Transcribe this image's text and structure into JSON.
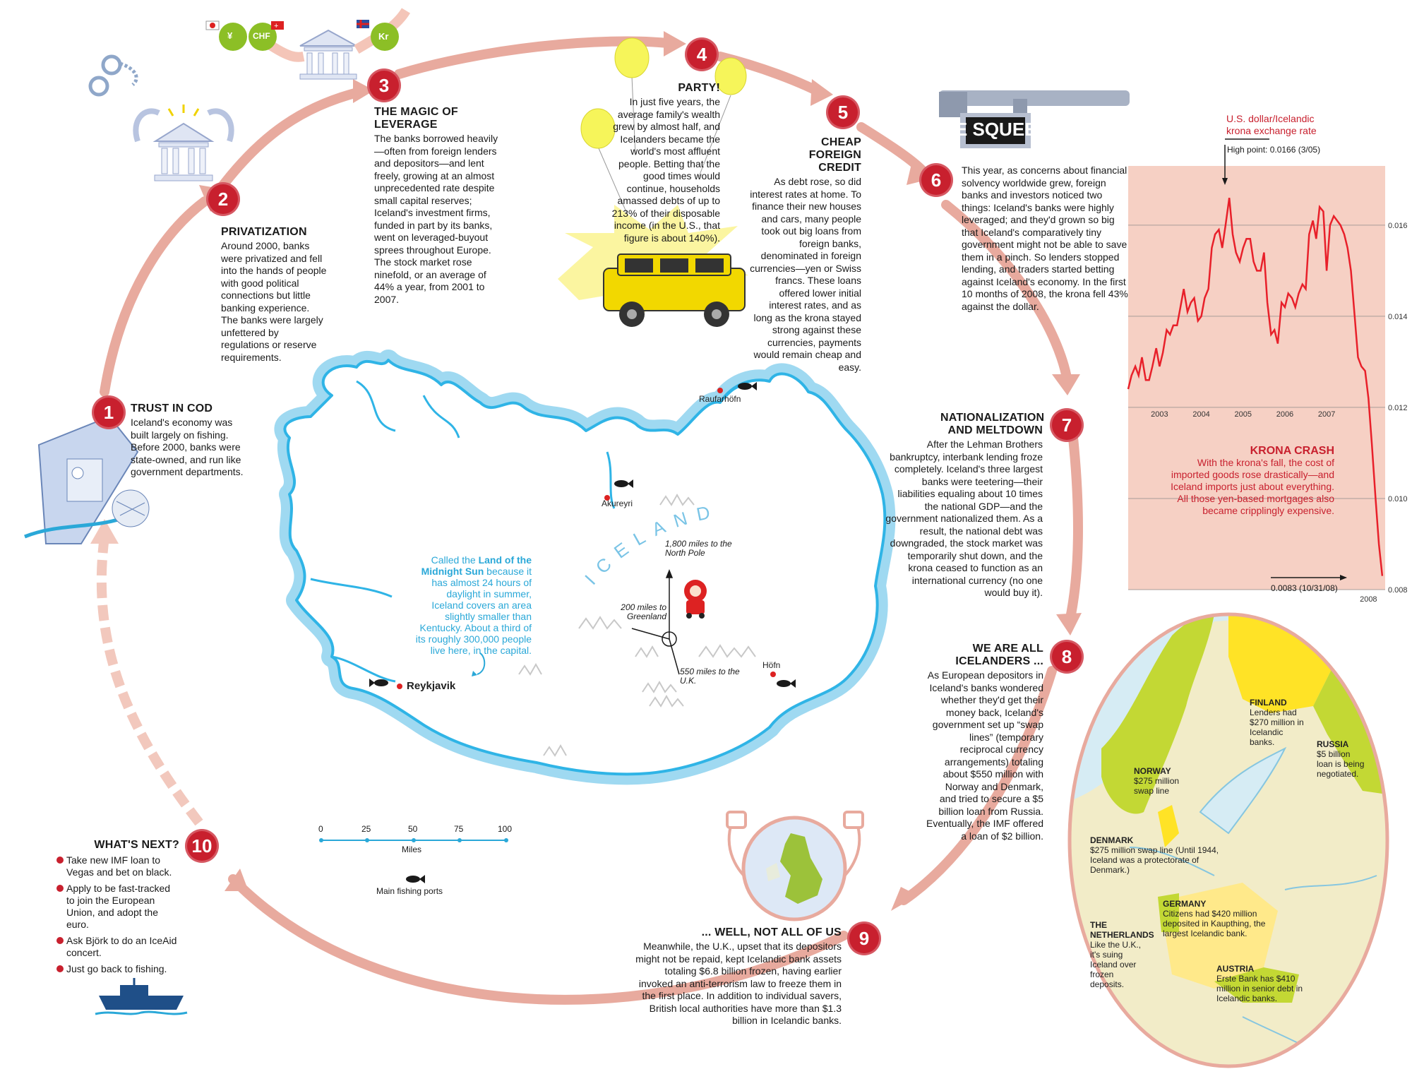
{
  "steps": [
    {
      "num": "1",
      "title": "TRUST IN COD",
      "body": "Iceland's economy was built largely on fishing. Before 2000, banks were state-owned, and run like government departments."
    },
    {
      "num": "2",
      "title": "PRIVATIZATION",
      "body": "Around 2000, banks were privatized and fell into the hands of people with good political connections but little banking experience. The banks were largely unfettered by regulations or reserve requirements."
    },
    {
      "num": "3",
      "title": "THE MAGIC OF LEVERAGE",
      "body": "The banks borrowed heavily—often from foreign lenders and depositors—and lent freely, growing at an almost unprecedented rate despite small capital reserves; Iceland's investment firms, funded in part by its banks, went on leveraged-buyout sprees throughout Europe. The stock market rose ninefold, or an average of 44% a year, from 2001 to 2007."
    },
    {
      "num": "4",
      "title": "PARTY!",
      "body": "In just five years, the average family's wealth grew by almost half, and Icelanders became the world's most affluent people. Betting that the good times would continue, households amassed debts of up to 213% of their disposable income (in the U.S., that figure is about 140%)."
    },
    {
      "num": "5",
      "title": "CHEAP FOREIGN CREDIT",
      "body": "As debt rose, so did interest rates at home. To finance their new houses and cars, many people took out big loans from foreign banks, denominated in foreign currencies—yen or Swiss francs. These loans offered lower initial interest rates, and as long as the krona stayed strong against these currencies, payments would remain cheap and easy."
    },
    {
      "num": "6",
      "title": "THE SQUEEZE",
      "body": "This year, as concerns about financial solvency worldwide grew, foreign banks and investors noticed two things: Iceland's banks were highly leveraged; and they'd grown so big that Iceland's comparatively tiny government might not be able to save them in a pinch. So lenders stopped lending, and traders started betting against Iceland's economy. In the first 10 months of 2008, the krona fell 43% against the dollar."
    },
    {
      "num": "7",
      "title": "NATIONALIZATION AND MELTDOWN",
      "body": "After the Lehman Brothers bankruptcy, interbank lending froze completely. Iceland's three largest banks were teetering—their liabilities equaling about 10 times the national GDP—and the government nationalized them. As a result, the national debt was downgraded, the stock market was temporarily shut down, and the krona ceased to function as an international currency (no one would buy it)."
    },
    {
      "num": "8",
      "title": "WE ARE ALL ICELANDERS ...",
      "body": "As European depositors in Iceland's banks wondered whether they'd get their money back, Iceland's government set up “swap lines” (temporary reciprocal currency arrangements) totaling about $550 million with Norway and Denmark, and tried to secure a $5 billion loan from Russia. Eventually, the IMF offered a loan of $2 billion."
    },
    {
      "num": "9",
      "title": "... WELL, NOT ALL OF US",
      "body": "Meanwhile, the U.K., upset that its depositors might not be repaid, kept Icelandic bank assets totaling $6.8 billion frozen, having earlier invoked an anti-terrorism law to freeze them in the first place. In addition to individual savers, British local authorities have more than $1.3 billion in Icelandic banks."
    },
    {
      "num": "10",
      "title": "WHAT'S NEXT?",
      "items": [
        "Take new IMF loan to Vegas and bet on black.",
        "Apply to be fast-tracked to join the European Union, and adopt the euro.",
        "Ask Björk to do an IceAid concert.",
        "Just go back to fishing."
      ]
    }
  ],
  "currency_labels": [
    "¥",
    "CHF",
    "Kr"
  ],
  "iceland_map": {
    "country_label": "ICELAND",
    "cities": [
      "Raufarhöfn",
      "Akureyri",
      "Reykjavik",
      "Höfn"
    ],
    "midnight_sun": {
      "pre": "Called the ",
      "highlight": "Land of the Midnight Sun",
      "post": " because it has almost 24 hours of daylight in summer, Iceland covers an area slightly smaller than Kentucky. About a third of its roughly 300,000 people live here, in the capital."
    },
    "distances": [
      "1,800 miles to the North Pole",
      "200 miles to Greenland",
      "550 miles to the U.K."
    ],
    "scale_ticks": [
      "0",
      "25",
      "50",
      "75",
      "100"
    ],
    "scale_unit": "Miles",
    "legend_fishing": "Main fishing ports"
  },
  "chart_data": {
    "type": "line",
    "title": "U.S. dollar/Icelandic krona exchange rate",
    "x_ticks": [
      "2003",
      "2004",
      "2005",
      "2006",
      "2007",
      "2008"
    ],
    "y_ticks": [
      "0.016",
      "0.014",
      "0.012",
      "0.010",
      "0.008"
    ],
    "ylim": [
      0.008,
      0.0173
    ],
    "xlim": [
      2002.75,
      2008.9
    ],
    "grid": true,
    "annotations": {
      "high": "High point: 0.0166 (3/05)",
      "low": "0.0083 (10/31/08)"
    },
    "series": [
      {
        "color": "#e8202a",
        "x": [
          2002.75,
          2002.83,
          2002.92,
          2003.0,
          2003.08,
          2003.17,
          2003.25,
          2003.33,
          2003.42,
          2003.5,
          2003.58,
          2003.67,
          2003.75,
          2003.83,
          2003.92,
          2004.0,
          2004.08,
          2004.17,
          2004.25,
          2004.33,
          2004.42,
          2004.5,
          2004.58,
          2004.67,
          2004.75,
          2004.83,
          2004.92,
          2005.0,
          2005.08,
          2005.17,
          2005.25,
          2005.33,
          2005.42,
          2005.5,
          2005.58,
          2005.67,
          2005.75,
          2005.83,
          2005.92,
          2006.0,
          2006.08,
          2006.17,
          2006.25,
          2006.33,
          2006.42,
          2006.5,
          2006.58,
          2006.67,
          2006.75,
          2006.83,
          2006.92,
          2007.0,
          2007.08,
          2007.17,
          2007.25,
          2007.33,
          2007.42,
          2007.5,
          2007.58,
          2007.67,
          2007.75,
          2007.83,
          2007.92,
          2008.0,
          2008.08,
          2008.17,
          2008.25,
          2008.33,
          2008.42,
          2008.5,
          2008.58,
          2008.67,
          2008.75,
          2008.83
        ],
        "y": [
          0.0124,
          0.0127,
          0.0129,
          0.0127,
          0.0131,
          0.0126,
          0.0126,
          0.0129,
          0.0133,
          0.0129,
          0.0132,
          0.0137,
          0.0136,
          0.0138,
          0.0138,
          0.0142,
          0.0146,
          0.0141,
          0.0143,
          0.0144,
          0.0139,
          0.014,
          0.0144,
          0.0146,
          0.0155,
          0.0158,
          0.0159,
          0.0155,
          0.016,
          0.0166,
          0.0158,
          0.0154,
          0.0152,
          0.0155,
          0.0157,
          0.0157,
          0.0152,
          0.015,
          0.015,
          0.0154,
          0.0143,
          0.0136,
          0.0137,
          0.0134,
          0.0143,
          0.0142,
          0.0145,
          0.0144,
          0.0142,
          0.0145,
          0.0147,
          0.0146,
          0.0158,
          0.0161,
          0.0157,
          0.0164,
          0.0163,
          0.015,
          0.016,
          0.0162,
          0.0161,
          0.016,
          0.0158,
          0.0155,
          0.015,
          0.014,
          0.0131,
          0.0129,
          0.0128,
          0.0122,
          0.0112,
          0.01,
          0.009,
          0.0083
        ]
      }
    ]
  },
  "krona_crash": {
    "title": "KRONA CRASH",
    "body": "With the krona's fall, the cost of imported goods rose drastically—and Iceland imports just about everything. All those yen-based mortgages also became cripplingly expensive."
  },
  "europe_map": {
    "finland": {
      "name": "FINLAND",
      "body": "Lenders had $270 million in Icelandic banks."
    },
    "russia": {
      "name": "RUSSIA",
      "body": "$5 billion loan is being negotiated."
    },
    "norway": {
      "name": "NORWAY",
      "body": "$275 million swap line"
    },
    "denmark": {
      "name": "DENMARK",
      "body": "$275 million swap line (Until 1944, Iceland was a protectorate of Denmark.)"
    },
    "germany": {
      "name": "GERMANY",
      "body": "Citizens had $420 million deposited in Kaupthing, the largest Icelandic bank."
    },
    "netherlands": {
      "name": "THE NETHERLANDS",
      "body": "Like the U.K., it's suing Iceland over frozen deposits."
    },
    "austria": {
      "name": "AUSTRIA",
      "body": "Erste Bank has $410 million in senior debt in Icelandic banks."
    }
  },
  "colors": {
    "accent_red": "#c8202e",
    "cycle_pink": "#e8aa9e",
    "ice_blue": "#58c3ea",
    "chart_bg": "#f6d0c4",
    "map_land": "#f2ecc8",
    "map_yellow": "#ffe326",
    "map_green": "#c3d834",
    "map_sea": "#d6ecf4"
  },
  "icons": [
    "bank-icon",
    "handcuffs-icon",
    "money-bag-icon",
    "balloon-icon",
    "suv-icon",
    "vise-icon",
    "santa-icon",
    "fish-icon",
    "fishing-boat-icon",
    "fists-icon",
    "uk-globe-icon",
    "cargo-ship-icon"
  ]
}
